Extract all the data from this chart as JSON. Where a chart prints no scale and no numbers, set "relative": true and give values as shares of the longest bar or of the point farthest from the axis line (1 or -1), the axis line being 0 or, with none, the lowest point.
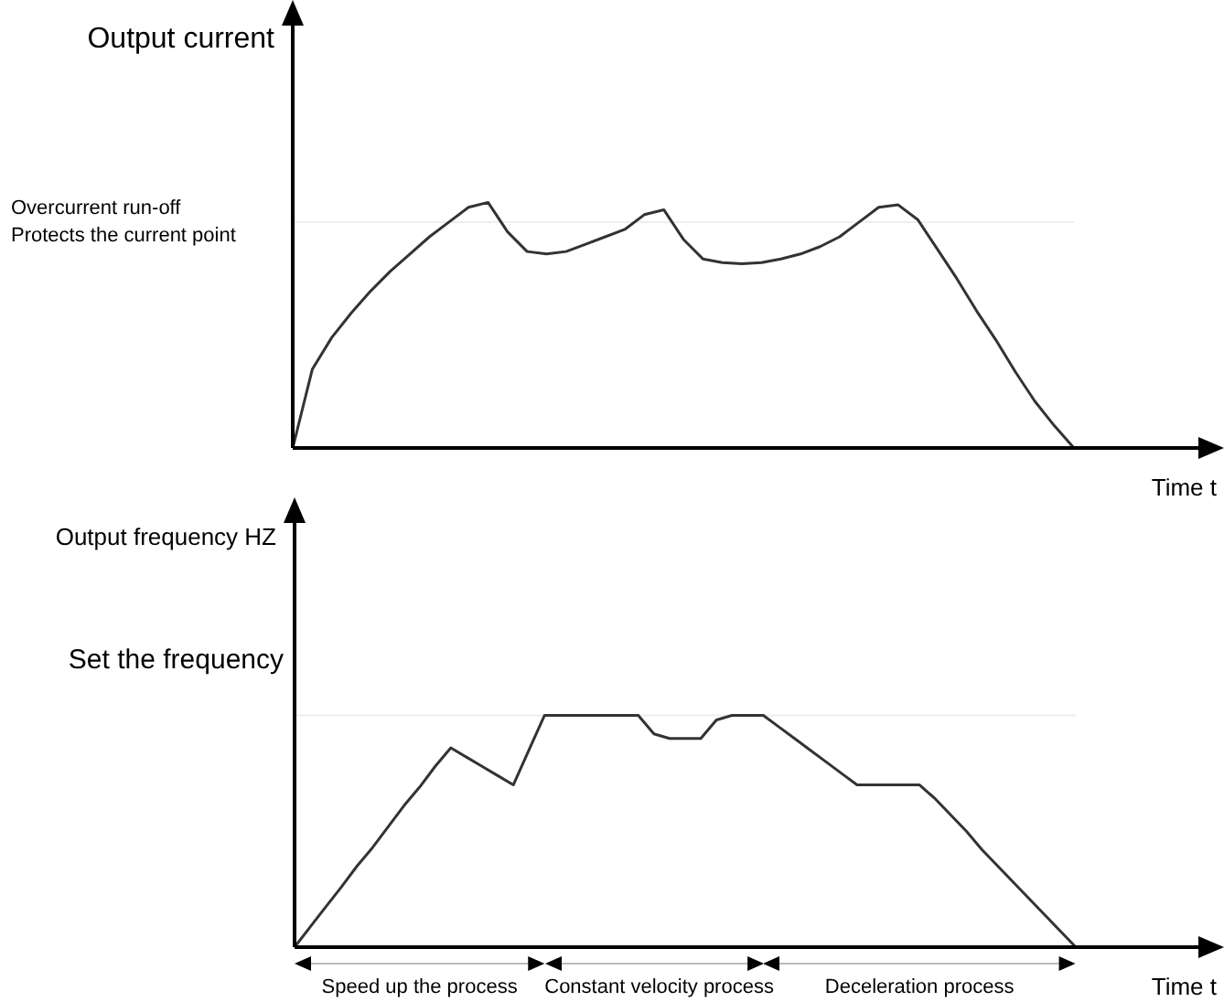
{
  "chart_data": [
    {
      "type": "line",
      "relative": true,
      "ylabel": "Output current",
      "xlabel": "Time t",
      "marker": "none",
      "line_style": "solid",
      "categories": [
        null,
        null,
        null,
        null,
        null,
        null,
        null,
        null,
        null,
        null,
        null,
        null,
        null,
        null,
        null,
        null,
        null,
        null,
        null,
        null,
        null,
        null,
        null,
        null,
        null,
        null,
        null,
        null,
        null,
        null,
        null,
        null,
        null,
        null,
        null,
        null,
        null,
        null,
        null,
        null,
        null
      ],
      "series": [
        {
          "color": "#333333",
          "values": [
            0,
            0.32,
            0.45,
            0.55,
            0.64,
            0.72,
            0.79,
            0.86,
            0.92,
            0.98,
            1,
            0.88,
            0.8,
            0.79,
            0.8,
            0.83,
            0.86,
            0.89,
            0.95,
            0.97,
            0.85,
            0.77,
            0.755,
            0.75,
            0.755,
            0.77,
            0.79,
            0.82,
            0.86,
            0.92,
            0.98,
            0.99,
            0.93,
            0.81,
            0.69,
            0.56,
            0.44,
            0.31,
            0.19,
            0.09,
            0
          ]
        }
      ],
      "ref_lines": [
        {
          "axis": "y",
          "value": 0.92,
          "label": "Overcurrent run-off\nProtects the current point",
          "color": "#eeeeee"
        }
      ]
    },
    {
      "type": "line",
      "relative": true,
      "ylabel": "Output frequency HZ",
      "xlabel": "Time t",
      "marker": "none",
      "line_style": "solid",
      "categories": [
        null,
        null,
        null,
        null,
        null,
        null,
        null,
        null,
        null,
        null,
        null,
        null,
        null,
        null,
        null,
        null,
        null,
        null,
        null,
        null,
        null,
        null,
        null,
        null,
        null,
        null,
        null,
        null,
        null,
        null,
        null,
        null,
        null,
        null,
        null,
        null,
        null,
        null,
        null,
        null,
        null,
        null,
        null,
        null,
        null,
        null,
        null,
        null,
        null,
        null,
        null
      ],
      "series": [
        {
          "color": "#333333",
          "values": [
            0,
            0.087,
            0.174,
            0.26,
            0.35,
            0.43,
            0.52,
            0.61,
            0.69,
            0.78,
            0.86,
            0.82,
            0.78,
            0.74,
            0.7,
            0.85,
            1,
            1,
            1,
            1,
            1,
            1,
            1,
            0.92,
            0.9,
            0.9,
            0.9,
            0.98,
            1,
            1,
            1,
            0.95,
            0.9,
            0.85,
            0.8,
            0.75,
            0.7,
            0.7,
            0.7,
            0.7,
            0.7,
            0.64,
            0.57,
            0.5,
            0.42,
            0.35,
            0.28,
            0.21,
            0.14,
            0.07,
            0
          ]
        }
      ],
      "ref_lines": [
        {
          "axis": "y",
          "value": 1,
          "label": "Set the frequency",
          "color": "#eeeeee"
        }
      ],
      "annotations": [
        "Speed up the process",
        "Constant velocity process",
        "Deceleration process"
      ]
    }
  ]
}
